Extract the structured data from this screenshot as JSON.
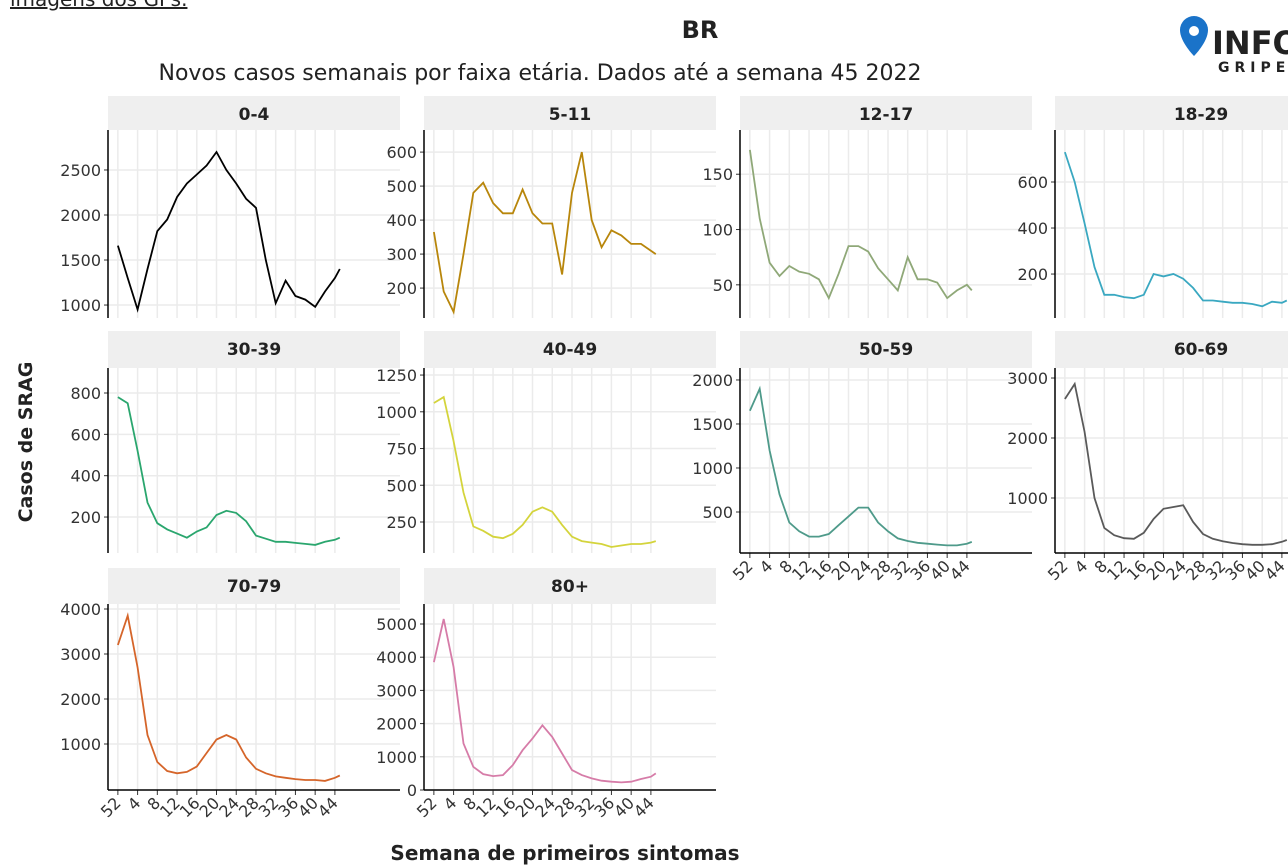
{
  "chart_data": {
    "type": "line",
    "note": "imagens dos GPs.",
    "title": "BR",
    "subtitle": "Novos casos semanais por faixa etária. Dados até a semana 45 2022",
    "logo_text": "INFO",
    "logo_subtext": "GRIPE",
    "x_label": "Semana de primeiros sintomas",
    "y_label": "Casos de SRAG",
    "grid": true,
    "x": [
      0,
      2,
      4,
      6,
      8,
      10,
      12,
      14,
      16,
      18,
      20,
      22,
      24,
      26,
      28,
      30,
      32,
      34,
      36,
      38,
      40,
      42,
      44,
      45
    ],
    "xlim": [
      -2,
      57.2
    ],
    "xticks": [
      {
        "value": 0,
        "label": "52"
      },
      4,
      8,
      12,
      16,
      20,
      24,
      28,
      32,
      36,
      40,
      44
    ],
    "panels": [
      {
        "name": "0-4",
        "color": "#000000",
        "ylim": [
          856,
          2944
        ],
        "yticks": [
          1000,
          1500,
          2000,
          2500
        ],
        "values": [
          1660,
          1300,
          950,
          1400,
          1820,
          1950,
          2200,
          2350,
          2450,
          2550,
          2700,
          2500,
          2350,
          2180,
          2080,
          1500,
          1020,
          1270,
          1100,
          1060,
          980,
          1150,
          1300,
          1400
        ]
      },
      {
        "name": "5-11",
        "color": "#b8860b",
        "ylim": [
          112,
          665
        ],
        "yticks": [
          200,
          300,
          400,
          500,
          600
        ],
        "values": [
          365,
          190,
          130,
          300,
          480,
          510,
          450,
          420,
          420,
          490,
          420,
          390,
          390,
          240,
          480,
          600,
          400,
          320,
          370,
          355,
          330,
          330,
          310,
          300
        ]
      },
      {
        "name": "12-17",
        "color": "#8fa878",
        "ylim": [
          20,
          190
        ],
        "yticks": [
          50,
          100,
          150
        ],
        "values": [
          172,
          110,
          70,
          58,
          67,
          62,
          60,
          55,
          38,
          60,
          85,
          85,
          80,
          65,
          55,
          45,
          75,
          55,
          55,
          52,
          38,
          45,
          50,
          45
        ]
      },
      {
        "name": "18-29",
        "color": "#3aa8c1",
        "ylim": [
          9,
          826
        ],
        "yticks": [
          200,
          400,
          600
        ],
        "values": [
          730,
          600,
          420,
          230,
          110,
          110,
          100,
          95,
          110,
          200,
          190,
          200,
          180,
          140,
          85,
          85,
          80,
          75,
          75,
          70,
          60,
          80,
          75,
          85
        ]
      },
      {
        "name": "30-39",
        "color": "#2aa66e",
        "ylim": [
          26,
          921
        ],
        "yticks": [
          200,
          400,
          600,
          800
        ],
        "values": [
          780,
          750,
          520,
          270,
          170,
          140,
          120,
          100,
          130,
          150,
          210,
          230,
          220,
          180,
          110,
          95,
          80,
          80,
          75,
          70,
          65,
          80,
          90,
          100
        ]
      },
      {
        "name": "40-49",
        "color": "#d4d43c",
        "ylim": [
          39,
          1298
        ],
        "yticks": [
          250,
          500,
          750,
          1000,
          1250
        ],
        "values": [
          1060,
          1100,
          800,
          450,
          220,
          190,
          150,
          140,
          170,
          230,
          320,
          350,
          320,
          230,
          150,
          120,
          110,
          100,
          80,
          90,
          100,
          100,
          110,
          120
        ]
      },
      {
        "name": "50-59",
        "color": "#4e9a8a",
        "ylim": [
          34,
          2136
        ],
        "yticks": [
          500,
          1000,
          1500,
          2000
        ],
        "values": [
          1650,
          1900,
          1200,
          700,
          380,
          280,
          220,
          220,
          250,
          350,
          450,
          550,
          550,
          380,
          280,
          200,
          170,
          150,
          140,
          130,
          120,
          120,
          140,
          160
        ]
      },
      {
        "name": "60-69",
        "color": "#5a5a5a",
        "ylim": [
          83,
          3167
        ],
        "yticks": [
          1000,
          2000,
          3000
        ],
        "values": [
          2650,
          2900,
          2100,
          1000,
          500,
          380,
          330,
          320,
          420,
          650,
          820,
          850,
          880,
          600,
          400,
          320,
          280,
          250,
          230,
          220,
          220,
          230,
          270,
          300
        ]
      },
      {
        "name": "70-79",
        "color": "#d5652a",
        "ylim": [
          -22,
          4111
        ],
        "yticks": [
          1000,
          2000,
          3000,
          4000
        ],
        "values": [
          3200,
          3850,
          2700,
          1200,
          600,
          400,
          350,
          380,
          500,
          800,
          1100,
          1200,
          1100,
          700,
          450,
          350,
          280,
          250,
          220,
          200,
          200,
          180,
          250,
          300
        ]
      },
      {
        "name": "80+",
        "color": "#d67ca8",
        "ylim": [
          0,
          5602
        ],
        "yticks": [
          0,
          1000,
          2000,
          3000,
          4000,
          5000
        ],
        "values": [
          3850,
          5150,
          3700,
          1400,
          700,
          480,
          420,
          450,
          750,
          1200,
          1550,
          1950,
          1600,
          1100,
          600,
          450,
          350,
          280,
          250,
          230,
          250,
          330,
          400,
          500
        ]
      }
    ]
  }
}
